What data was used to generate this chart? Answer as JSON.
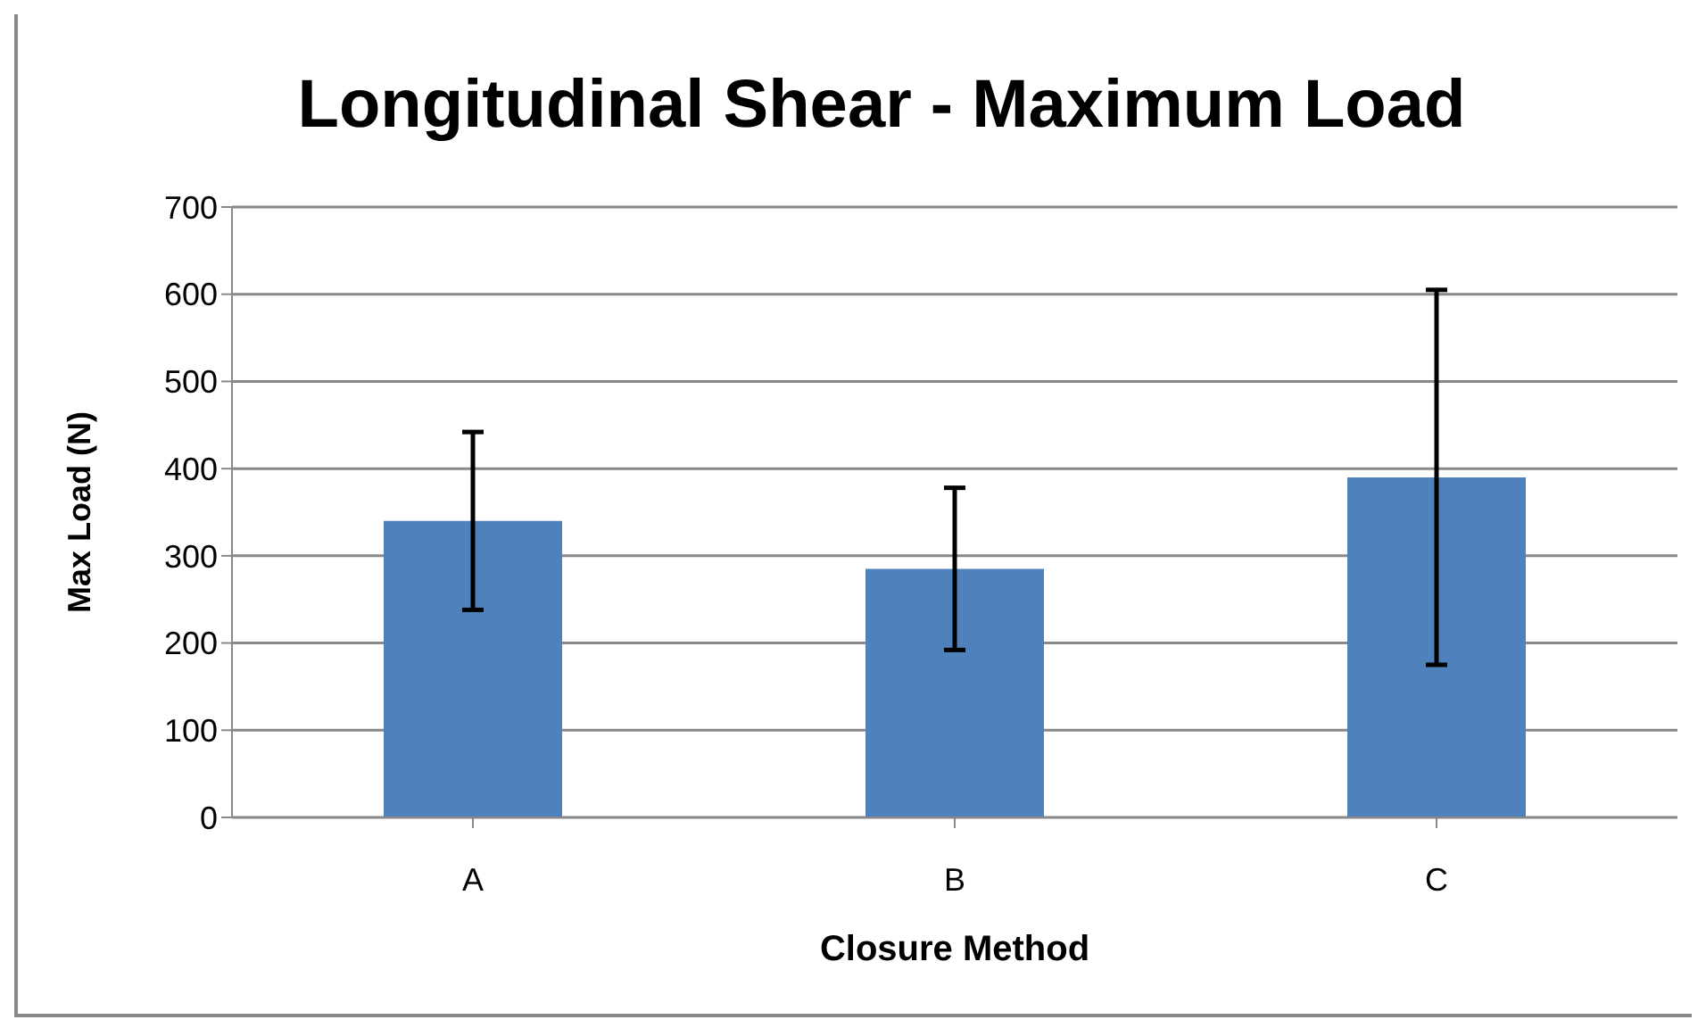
{
  "chart_data": {
    "type": "bar",
    "title": "Longitudinal Shear - Maximum Load",
    "xlabel": "Closure Method",
    "ylabel": "Max Load (N)",
    "categories": [
      "A",
      "B",
      "C"
    ],
    "values": [
      340,
      285,
      390
    ],
    "errors": [
      102,
      93,
      215
    ],
    "color": "#4f81bd",
    "ylim": [
      0,
      700
    ],
    "yticks": [
      0,
      100,
      200,
      300,
      400,
      500,
      600,
      700
    ],
    "grid": "y",
    "legend": false
  }
}
